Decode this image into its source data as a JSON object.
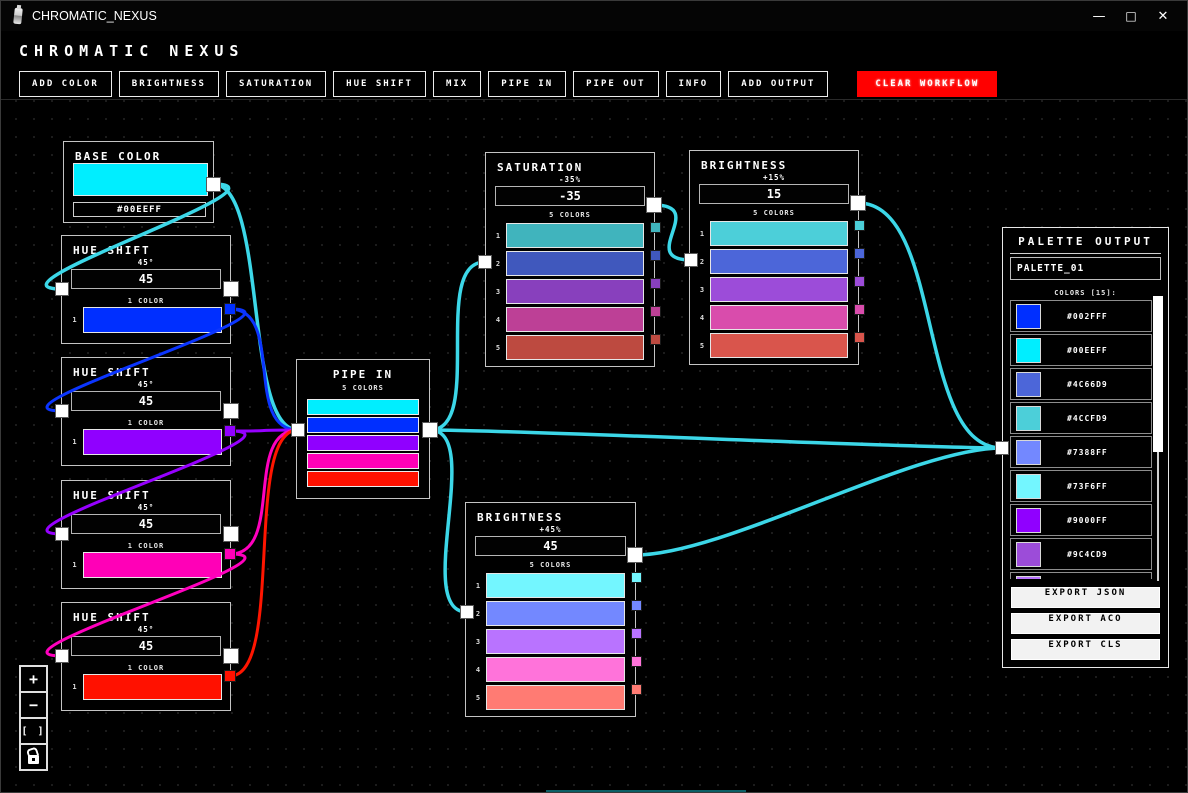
{
  "window": {
    "title": "CHROMATIC_NEXUS",
    "minimize": "—",
    "maximize": "□",
    "close": "✕"
  },
  "header": {
    "title": "CHROMATIC NEXUS"
  },
  "toolbar": {
    "buttons": [
      "ADD COLOR",
      "BRIGHTNESS",
      "SATURATION",
      "HUE SHIFT",
      "MIX",
      "PIPE IN",
      "PIPE OUT",
      "INFO",
      "ADD OUTPUT"
    ],
    "clear_button": "CLEAR WORKFLOW",
    "clear_button_color": "#FF0000"
  },
  "zoom_controls": {
    "zoom_in": "+",
    "zoom_out": "−",
    "fit": "[ ]",
    "lock_icon": "lock-open"
  },
  "wire_colors": {
    "cyan": "#3CD7E8",
    "blue": "#0B35FF",
    "purple": "#9600FF",
    "magenta": "#FF00BE",
    "red": "#FF1500"
  },
  "nodes": {
    "base_color": {
      "title": "BASE COLOR",
      "swatch": "#00EEFF",
      "hex": "#00EEFF"
    },
    "hue_shifts": [
      {
        "title": "HUE SHIFT",
        "degree_label": "45°",
        "value": "45",
        "count_label": "1 COLOR",
        "swatch_index": "1",
        "swatch": "#002FFF"
      },
      {
        "title": "HUE SHIFT",
        "degree_label": "45°",
        "value": "45",
        "count_label": "1 COLOR",
        "swatch_index": "1",
        "swatch": "#9000FF"
      },
      {
        "title": "HUE SHIFT",
        "degree_label": "45°",
        "value": "45",
        "count_label": "1 COLOR",
        "swatch_index": "1",
        "swatch": "#FF00B7"
      },
      {
        "title": "HUE SHIFT",
        "degree_label": "45°",
        "value": "45",
        "count_label": "1 COLOR",
        "swatch_index": "1",
        "swatch": "#FF1100"
      }
    ],
    "pipe_in": {
      "title": "PIPE IN",
      "count_label": "5 COLORS",
      "swatches": [
        "#00EEFF",
        "#002FFF",
        "#9000FF",
        "#FF00B7",
        "#FF1100"
      ]
    },
    "saturation": {
      "title": "SATURATION",
      "amount_label": "-35%",
      "value": "-35",
      "count_label": "5 COLORS",
      "swatches": [
        "#40B4BD",
        "#4058BD",
        "#8840BD",
        "#BD4096",
        "#BD4A40"
      ]
    },
    "brightness_top": {
      "title": "BRIGHTNESS",
      "amount_label": "+15%",
      "value": "15",
      "count_label": "5 COLORS",
      "swatches": [
        "#4CCFD9",
        "#4C66D9",
        "#9C4CD9",
        "#D94CAC",
        "#D9554C"
      ]
    },
    "brightness_bottom": {
      "title": "BRIGHTNESS",
      "amount_label": "+45%",
      "value": "45",
      "count_label": "5 COLORS",
      "swatches": [
        "#73F6FF",
        "#7388FF",
        "#B973FF",
        "#FF73DA",
        "#FF7B73"
      ]
    },
    "palette_output": {
      "title": "PALETTE OUTPUT",
      "name_value": "PALETTE_01",
      "count_label": "COLORS [15]:",
      "colors": [
        {
          "hex": "#002FFF",
          "color": "#002FFF"
        },
        {
          "hex": "#00EEFF",
          "color": "#00EEFF"
        },
        {
          "hex": "#4C66D9",
          "color": "#4C66D9"
        },
        {
          "hex": "#4CCFD9",
          "color": "#4CCFD9"
        },
        {
          "hex": "#7388FF",
          "color": "#7388FF"
        },
        {
          "hex": "#73F6FF",
          "color": "#73F6FF"
        },
        {
          "hex": "#9000FF",
          "color": "#9000FF"
        },
        {
          "hex": "#9C4CD9",
          "color": "#9C4CD9"
        },
        {
          "hex": "",
          "color": "#B973FF",
          "partial": true
        }
      ],
      "export_buttons": [
        "EXPORT JSON",
        "EXPORT ACO",
        "EXPORT CLS"
      ]
    }
  },
  "connections": [
    {
      "from": "base_out",
      "to": "hs0_in",
      "color": "cyan"
    },
    {
      "from": "base_out",
      "to": "pipe_in",
      "color": "cyan"
    },
    {
      "from": "hs0_out",
      "to": "hs1_in",
      "color": "blue"
    },
    {
      "from": "hs0_out",
      "to": "pipe_in",
      "color": "blue"
    },
    {
      "from": "hs1_out",
      "to": "hs2_in",
      "color": "purple"
    },
    {
      "from": "hs1_out",
      "to": "pipe_in",
      "color": "purple"
    },
    {
      "from": "hs2_out",
      "to": "hs3_in",
      "color": "magenta"
    },
    {
      "from": "hs2_out",
      "to": "pipe_in",
      "color": "magenta"
    },
    {
      "from": "hs3_out",
      "to": "pipe_in",
      "color": "red"
    },
    {
      "from": "pipe_out",
      "to": "sat_in",
      "color": "cyan"
    },
    {
      "from": "pipe_out",
      "to": "brb_in",
      "color": "cyan"
    },
    {
      "from": "pipe_out",
      "to": "pal_in",
      "color": "cyan"
    },
    {
      "from": "sat_out",
      "to": "brt_in",
      "color": "cyan"
    },
    {
      "from": "brt_out",
      "to": "pal_in",
      "color": "cyan"
    },
    {
      "from": "brb_out",
      "to": "pal_in",
      "color": "cyan"
    }
  ]
}
